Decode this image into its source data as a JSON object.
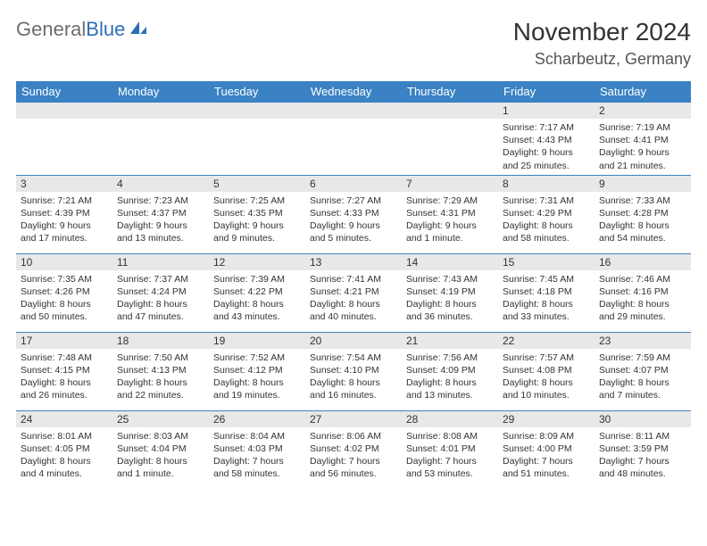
{
  "brand": {
    "word1": "General",
    "word2": "Blue",
    "word1_color": "#6d6d6d",
    "word2_color": "#2d6fb5",
    "icon_color": "#2d6fb5"
  },
  "title": "November 2024",
  "location": "Scharbeutz, Germany",
  "header_bg": "#3b82c4",
  "header_text_color": "#ffffff",
  "border_color": "#3b82c4",
  "daynum_bg": "#e8e8e8",
  "text_color": "#333333",
  "background_color": "#ffffff",
  "weekdays": [
    "Sunday",
    "Monday",
    "Tuesday",
    "Wednesday",
    "Thursday",
    "Friday",
    "Saturday"
  ],
  "weeks": [
    [
      null,
      null,
      null,
      null,
      null,
      {
        "n": "1",
        "sr": "7:17 AM",
        "ss": "4:43 PM",
        "dl": "9 hours and 25 minutes."
      },
      {
        "n": "2",
        "sr": "7:19 AM",
        "ss": "4:41 PM",
        "dl": "9 hours and 21 minutes."
      }
    ],
    [
      {
        "n": "3",
        "sr": "7:21 AM",
        "ss": "4:39 PM",
        "dl": "9 hours and 17 minutes."
      },
      {
        "n": "4",
        "sr": "7:23 AM",
        "ss": "4:37 PM",
        "dl": "9 hours and 13 minutes."
      },
      {
        "n": "5",
        "sr": "7:25 AM",
        "ss": "4:35 PM",
        "dl": "9 hours and 9 minutes."
      },
      {
        "n": "6",
        "sr": "7:27 AM",
        "ss": "4:33 PM",
        "dl": "9 hours and 5 minutes."
      },
      {
        "n": "7",
        "sr": "7:29 AM",
        "ss": "4:31 PM",
        "dl": "9 hours and 1 minute."
      },
      {
        "n": "8",
        "sr": "7:31 AM",
        "ss": "4:29 PM",
        "dl": "8 hours and 58 minutes."
      },
      {
        "n": "9",
        "sr": "7:33 AM",
        "ss": "4:28 PM",
        "dl": "8 hours and 54 minutes."
      }
    ],
    [
      {
        "n": "10",
        "sr": "7:35 AM",
        "ss": "4:26 PM",
        "dl": "8 hours and 50 minutes."
      },
      {
        "n": "11",
        "sr": "7:37 AM",
        "ss": "4:24 PM",
        "dl": "8 hours and 47 minutes."
      },
      {
        "n": "12",
        "sr": "7:39 AM",
        "ss": "4:22 PM",
        "dl": "8 hours and 43 minutes."
      },
      {
        "n": "13",
        "sr": "7:41 AM",
        "ss": "4:21 PM",
        "dl": "8 hours and 40 minutes."
      },
      {
        "n": "14",
        "sr": "7:43 AM",
        "ss": "4:19 PM",
        "dl": "8 hours and 36 minutes."
      },
      {
        "n": "15",
        "sr": "7:45 AM",
        "ss": "4:18 PM",
        "dl": "8 hours and 33 minutes."
      },
      {
        "n": "16",
        "sr": "7:46 AM",
        "ss": "4:16 PM",
        "dl": "8 hours and 29 minutes."
      }
    ],
    [
      {
        "n": "17",
        "sr": "7:48 AM",
        "ss": "4:15 PM",
        "dl": "8 hours and 26 minutes."
      },
      {
        "n": "18",
        "sr": "7:50 AM",
        "ss": "4:13 PM",
        "dl": "8 hours and 22 minutes."
      },
      {
        "n": "19",
        "sr": "7:52 AM",
        "ss": "4:12 PM",
        "dl": "8 hours and 19 minutes."
      },
      {
        "n": "20",
        "sr": "7:54 AM",
        "ss": "4:10 PM",
        "dl": "8 hours and 16 minutes."
      },
      {
        "n": "21",
        "sr": "7:56 AM",
        "ss": "4:09 PM",
        "dl": "8 hours and 13 minutes."
      },
      {
        "n": "22",
        "sr": "7:57 AM",
        "ss": "4:08 PM",
        "dl": "8 hours and 10 minutes."
      },
      {
        "n": "23",
        "sr": "7:59 AM",
        "ss": "4:07 PM",
        "dl": "8 hours and 7 minutes."
      }
    ],
    [
      {
        "n": "24",
        "sr": "8:01 AM",
        "ss": "4:05 PM",
        "dl": "8 hours and 4 minutes."
      },
      {
        "n": "25",
        "sr": "8:03 AM",
        "ss": "4:04 PM",
        "dl": "8 hours and 1 minute."
      },
      {
        "n": "26",
        "sr": "8:04 AM",
        "ss": "4:03 PM",
        "dl": "7 hours and 58 minutes."
      },
      {
        "n": "27",
        "sr": "8:06 AM",
        "ss": "4:02 PM",
        "dl": "7 hours and 56 minutes."
      },
      {
        "n": "28",
        "sr": "8:08 AM",
        "ss": "4:01 PM",
        "dl": "7 hours and 53 minutes."
      },
      {
        "n": "29",
        "sr": "8:09 AM",
        "ss": "4:00 PM",
        "dl": "7 hours and 51 minutes."
      },
      {
        "n": "30",
        "sr": "8:11 AM",
        "ss": "3:59 PM",
        "dl": "7 hours and 48 minutes."
      }
    ]
  ],
  "labels": {
    "sunrise": "Sunrise:",
    "sunset": "Sunset:",
    "daylight": "Daylight:"
  }
}
